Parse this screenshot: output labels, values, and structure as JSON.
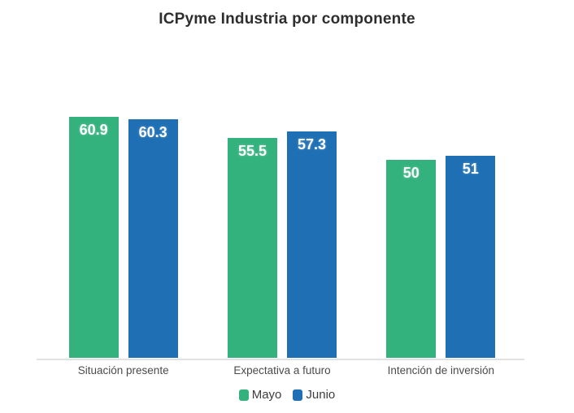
{
  "title": "ICPyme Industria por componente",
  "chart_data": {
    "type": "bar",
    "title": "ICPyme Industria por componente",
    "categories": [
      "Situación presente",
      "Expectativa a futuro",
      "Intención de inversión"
    ],
    "series": [
      {
        "name": "Mayo",
        "color": "#33b27d",
        "values": [
          60.9,
          55.5,
          50
        ]
      },
      {
        "name": "Junio",
        "color": "#1e6fb4",
        "values": [
          60.3,
          57.3,
          51
        ]
      }
    ],
    "xlabel": "",
    "ylabel": "",
    "ylim": [
      0,
      61.5
    ],
    "grid": false,
    "y_axis_visible": false,
    "bar_value_labels_inside": true,
    "bar_value_label_color": "#ffffff",
    "legend_position": "bottom",
    "axis_line_color": "#e2e2e2",
    "title_color": "#2e2e2e",
    "category_label_color": "#4b4b4b"
  }
}
